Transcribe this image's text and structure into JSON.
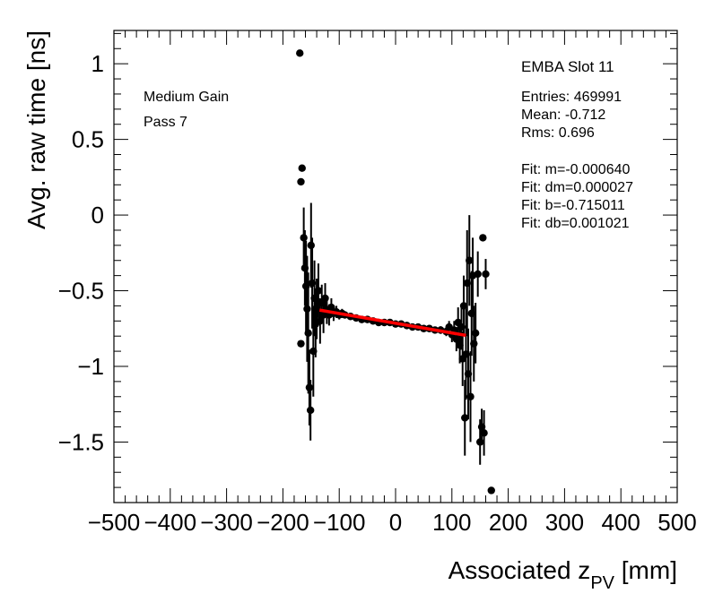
{
  "chart_data": {
    "type": "scatter",
    "title": "",
    "xlabel_main": "Associated z",
    "xlabel_sub": "PV",
    "xlabel_unit": " [mm]",
    "ylabel": "Avg. raw time [ns]",
    "xlim": [
      -500,
      500
    ],
    "ylim": [
      -1.9,
      1.22
    ],
    "xticks": [
      -500,
      -400,
      -300,
      -200,
      -100,
      0,
      100,
      200,
      300,
      400,
      500
    ],
    "xtick_labels": [
      "−500",
      "−400",
      "−300",
      "−200",
      "−100",
      "0",
      "100",
      "200",
      "300",
      "400",
      "500"
    ],
    "yticks": [
      1,
      0.5,
      0,
      -0.5,
      -1,
      -1.5
    ],
    "ytick_labels": [
      "1",
      "0.5",
      "0",
      "−0.5",
      "−1",
      "−1.5"
    ],
    "grid": false,
    "labels_left": [
      "Medium Gain",
      "Pass 7"
    ],
    "stats_title": "EMBA Slot 11",
    "stats": [
      "Entries: 469991",
      "Mean: -0.712",
      "Rms: 0.696"
    ],
    "fit_text": [
      "Fit: m=-0.000640",
      "Fit: dm=0.000027",
      "Fit: b=-0.715011",
      "Fit: db=0.001021"
    ],
    "fit_line": {
      "x": [
        -135,
        125
      ],
      "y": [
        -0.628,
        -0.795
      ],
      "color": "#ff0000"
    },
    "point_color": "#000000",
    "points": [
      {
        "x": -170,
        "y": 1.07,
        "e": 0.0
      },
      {
        "x": -168,
        "y": 0.22,
        "e": 0.0
      },
      {
        "x": -166,
        "y": 0.31,
        "e": 0.0
      },
      {
        "x": -168,
        "y": -0.85,
        "e": 0.0
      },
      {
        "x": -163,
        "y": -0.15,
        "e": 0.2
      },
      {
        "x": -161,
        "y": -0.35,
        "e": 0.25
      },
      {
        "x": -159,
        "y": -0.47,
        "e": 0.3
      },
      {
        "x": -157,
        "y": -0.62,
        "e": 0.35
      },
      {
        "x": -155,
        "y": -0.78,
        "e": 0.4
      },
      {
        "x": -153,
        "y": -1.14,
        "e": 0.25
      },
      {
        "x": -151,
        "y": -1.29,
        "e": 0.2
      },
      {
        "x": -150,
        "y": -0.2,
        "e": 0.28
      },
      {
        "x": -148,
        "y": -0.45,
        "e": 0.3
      },
      {
        "x": -146,
        "y": -0.9,
        "e": 0.3
      },
      {
        "x": -144,
        "y": -0.55,
        "e": 0.25
      },
      {
        "x": -142,
        "y": -0.72,
        "e": 0.22
      },
      {
        "x": -140,
        "y": -0.62,
        "e": 0.2
      },
      {
        "x": -137,
        "y": -0.5,
        "e": 0.18
      },
      {
        "x": -134,
        "y": -0.7,
        "e": 0.15
      },
      {
        "x": -131,
        "y": -0.58,
        "e": 0.12
      },
      {
        "x": -128,
        "y": -0.66,
        "e": 0.12
      },
      {
        "x": -125,
        "y": -0.55,
        "e": 0.1
      },
      {
        "x": -122,
        "y": -0.63,
        "e": 0.09
      },
      {
        "x": -118,
        "y": -0.66,
        "e": 0.07
      },
      {
        "x": -114,
        "y": -0.61,
        "e": 0.06
      },
      {
        "x": -110,
        "y": -0.65,
        "e": 0.05
      },
      {
        "x": -105,
        "y": -0.64,
        "e": 0.04
      },
      {
        "x": -100,
        "y": -0.66,
        "e": 0.03
      },
      {
        "x": -95,
        "y": -0.65,
        "e": 0.03
      },
      {
        "x": -90,
        "y": -0.66,
        "e": 0.02
      },
      {
        "x": -80,
        "y": -0.67,
        "e": 0.02
      },
      {
        "x": -70,
        "y": -0.68,
        "e": 0.02
      },
      {
        "x": -60,
        "y": -0.69,
        "e": 0.015
      },
      {
        "x": -50,
        "y": -0.69,
        "e": 0.015
      },
      {
        "x": -40,
        "y": -0.7,
        "e": 0.015
      },
      {
        "x": -30,
        "y": -0.71,
        "e": 0.015
      },
      {
        "x": -20,
        "y": -0.71,
        "e": 0.015
      },
      {
        "x": -10,
        "y": -0.71,
        "e": 0.015
      },
      {
        "x": 0,
        "y": -0.72,
        "e": 0.015
      },
      {
        "x": 10,
        "y": -0.72,
        "e": 0.015
      },
      {
        "x": 20,
        "y": -0.73,
        "e": 0.015
      },
      {
        "x": 30,
        "y": -0.74,
        "e": 0.015
      },
      {
        "x": 40,
        "y": -0.74,
        "e": 0.015
      },
      {
        "x": 50,
        "y": -0.75,
        "e": 0.02
      },
      {
        "x": 60,
        "y": -0.75,
        "e": 0.02
      },
      {
        "x": 70,
        "y": -0.76,
        "e": 0.02
      },
      {
        "x": 80,
        "y": -0.76,
        "e": 0.025
      },
      {
        "x": 90,
        "y": -0.77,
        "e": 0.03
      },
      {
        "x": 95,
        "y": -0.74,
        "e": 0.04
      },
      {
        "x": 100,
        "y": -0.79,
        "e": 0.05
      },
      {
        "x": 104,
        "y": -0.76,
        "e": 0.06
      },
      {
        "x": 108,
        "y": -0.82,
        "e": 0.08
      },
      {
        "x": 111,
        "y": -0.71,
        "e": 0.1
      },
      {
        "x": 114,
        "y": -0.86,
        "e": 0.12
      },
      {
        "x": 117,
        "y": -0.74,
        "e": 0.15
      },
      {
        "x": 119,
        "y": -0.95,
        "e": 0.18
      },
      {
        "x": 121,
        "y": -0.6,
        "e": 0.2
      },
      {
        "x": 123,
        "y": -1.34,
        "e": 0.25
      },
      {
        "x": 125,
        "y": -0.92,
        "e": 0.3
      },
      {
        "x": 127,
        "y": -0.45,
        "e": 0.35
      },
      {
        "x": 129,
        "y": -1.05,
        "e": 0.3
      },
      {
        "x": 131,
        "y": -0.3,
        "e": 0.3
      },
      {
        "x": 133,
        "y": -1.2,
        "e": 0.3
      },
      {
        "x": 135,
        "y": -0.65,
        "e": 0.28
      },
      {
        "x": 137,
        "y": -0.4,
        "e": 0.25
      },
      {
        "x": 139,
        "y": -0.85,
        "e": 0.25
      },
      {
        "x": 142,
        "y": -0.78,
        "e": 0.2
      },
      {
        "x": 146,
        "y": -0.39,
        "e": 0.15
      },
      {
        "x": 150,
        "y": -1.5,
        "e": 0.15
      },
      {
        "x": 153,
        "y": -1.4,
        "e": 0.12
      },
      {
        "x": 155,
        "y": -0.15,
        "e": 0.0
      },
      {
        "x": 157,
        "y": -1.44,
        "e": 0.15
      },
      {
        "x": 160,
        "y": -0.39,
        "e": 0.1
      },
      {
        "x": 170,
        "y": -1.82,
        "e": 0.0
      }
    ]
  }
}
